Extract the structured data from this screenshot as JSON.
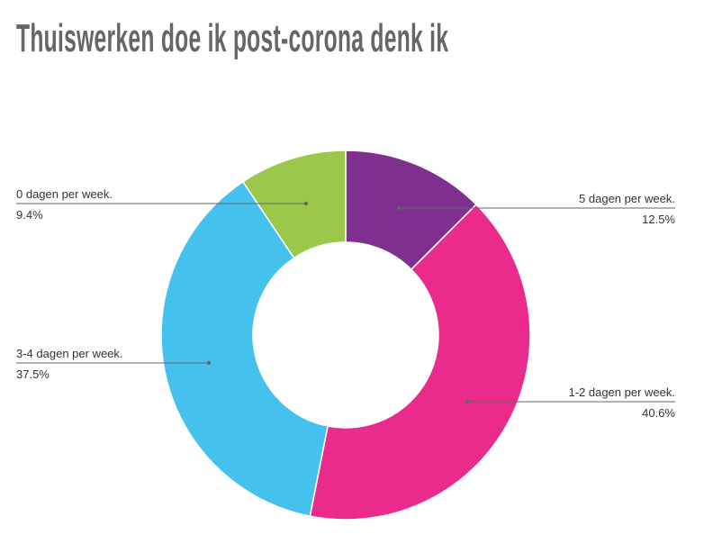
{
  "chart_data": {
    "type": "pie",
    "donut": true,
    "title": "Thuiswerken doe ik post-corona denk ik",
    "legend": "none",
    "slices": [
      {
        "label": "5 dagen per week.",
        "value": 12.5,
        "display": "12.5%",
        "color": "#7f2f8e"
      },
      {
        "label": "1-2 dagen per week.",
        "value": 40.6,
        "display": "40.6%",
        "color": "#ea2b8c"
      },
      {
        "label": "3-4 dagen per week.",
        "value": 37.5,
        "display": "37.5%",
        "color": "#45c1ee"
      },
      {
        "label": "0 dagen per week.",
        "value": 9.4,
        "display": "9.4%",
        "color": "#9bc74a"
      }
    ]
  }
}
